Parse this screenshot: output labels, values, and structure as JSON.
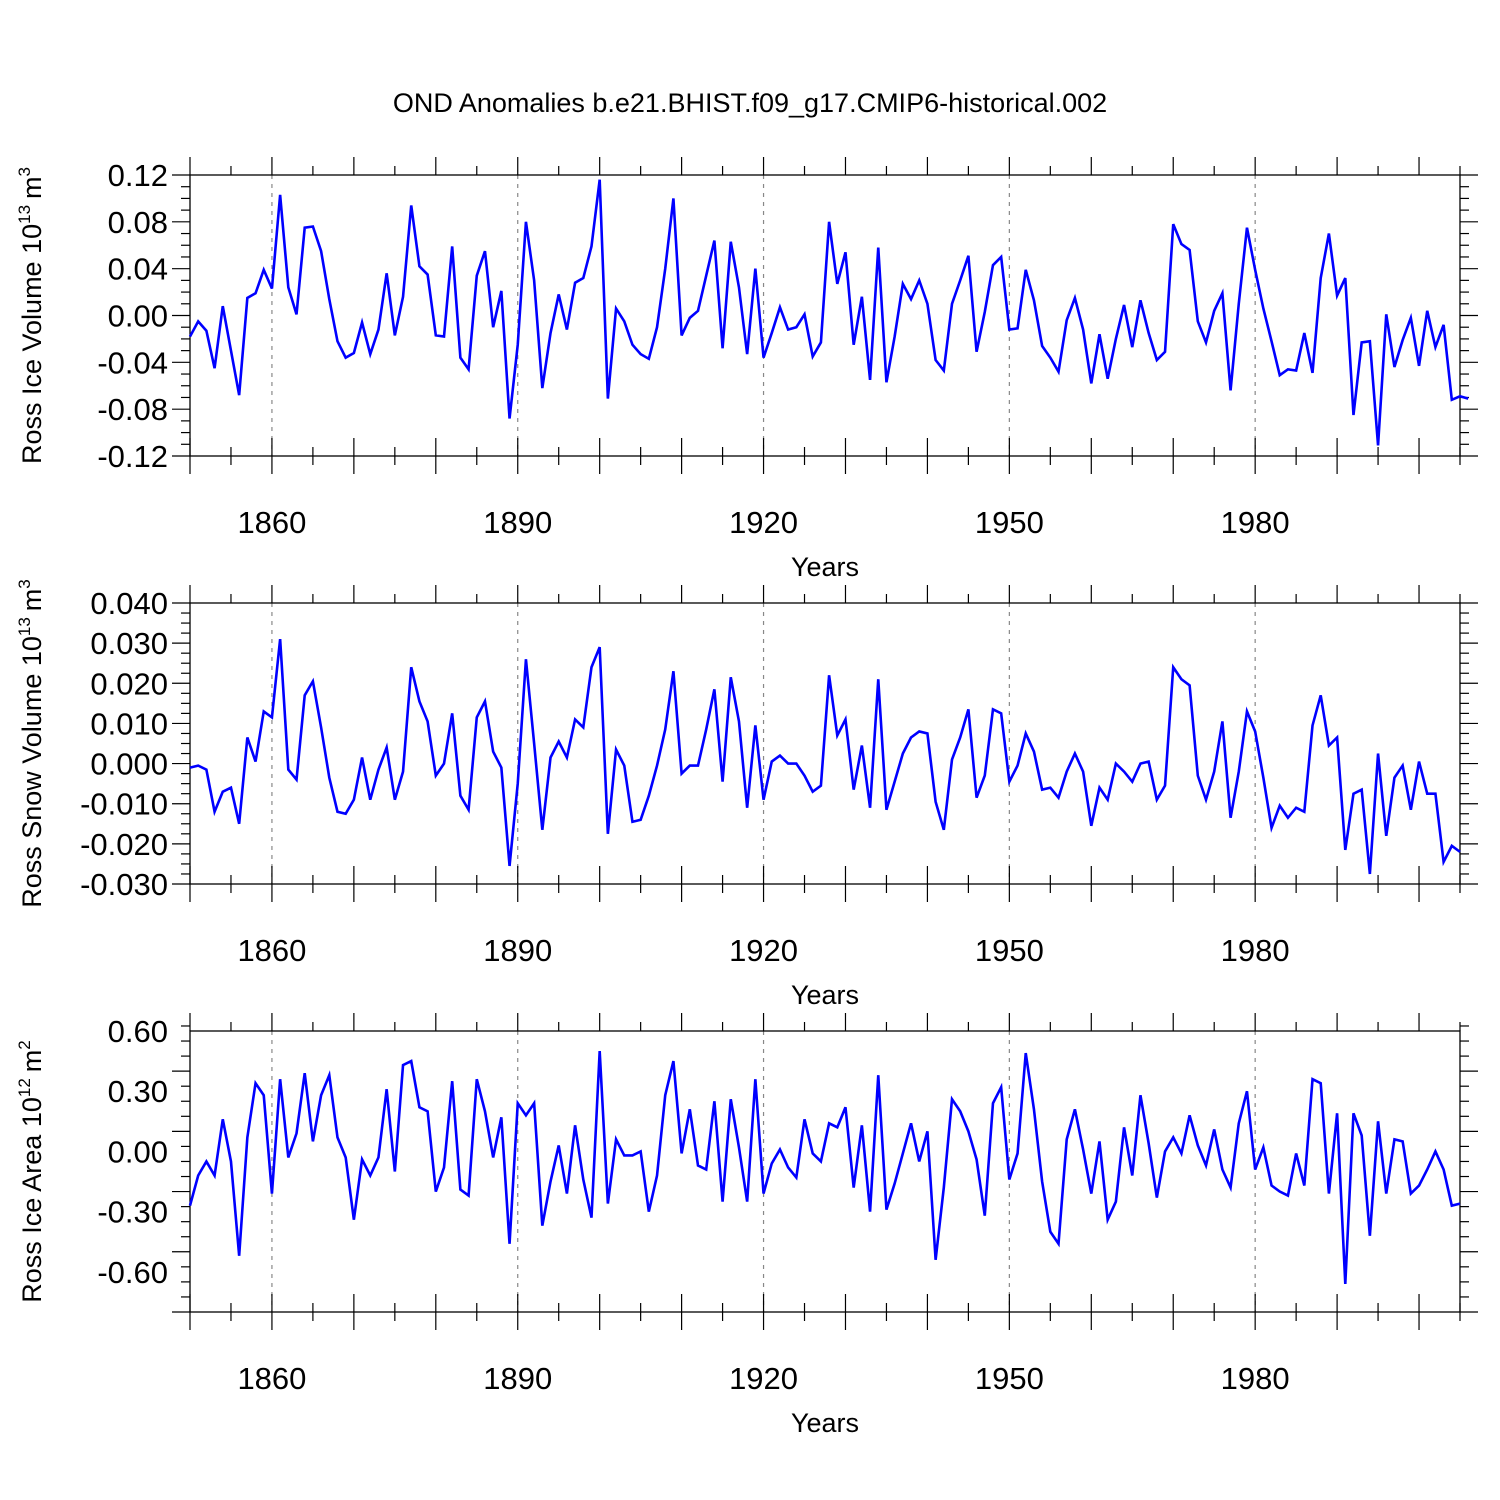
{
  "title": "OND Anomalies b.e21.BHIST.f09_g17.CMIP6-historical.002",
  "chart_data": [
    {
      "type": "line",
      "name": "ross-ice-volume",
      "ylabel": "Ross Ice Volume",
      "ylabel_unit_base": "10",
      "ylabel_unit_exp": "13",
      "ylabel_unit_tail": "m",
      "ylabel_unit_tail_exp": "3",
      "xlabel": "Years",
      "xlim": [
        1850,
        2005
      ],
      "ylim": [
        -0.12,
        0.12
      ],
      "x_ticks": [
        "1860",
        "1890",
        "1920",
        "1950",
        "1980"
      ],
      "y_ticks": [
        "0.12",
        "0.08",
        "0.04",
        "0.00",
        "-0.04",
        "-0.08",
        "-0.12"
      ],
      "grid": "vertical dashed at major x ticks",
      "line_color": "#0000ff",
      "x_start": 1850,
      "values": [
        -0.018,
        -0.005,
        -0.013,
        -0.045,
        0.008,
        -0.03,
        -0.068,
        0.015,
        0.019,
        0.039,
        0.023,
        0.103,
        0.024,
        0.001,
        0.075,
        0.076,
        0.055,
        0.014,
        -0.022,
        -0.036,
        -0.032,
        -0.006,
        -0.033,
        -0.012,
        0.036,
        -0.017,
        0.016,
        0.094,
        0.042,
        0.035,
        -0.017,
        -0.018,
        0.059,
        -0.036,
        -0.046,
        0.034,
        0.055,
        -0.01,
        0.021,
        -0.088,
        -0.025,
        0.08,
        0.03,
        -0.062,
        -0.015,
        0.018,
        -0.012,
        0.028,
        0.032,
        0.059,
        0.116,
        -0.071,
        0.006,
        -0.005,
        -0.025,
        -0.033,
        -0.037,
        -0.01,
        0.04,
        0.1,
        -0.017,
        -0.002,
        0.004,
        0.034,
        0.064,
        -0.028,
        0.063,
        0.024,
        -0.033,
        0.04,
        -0.036,
        -0.015,
        0.007,
        -0.012,
        -0.01,
        0.001,
        -0.035,
        -0.023,
        0.08,
        0.027,
        0.054,
        -0.025,
        0.016,
        -0.055,
        0.058,
        -0.057,
        -0.018,
        0.027,
        0.014,
        0.03,
        0.01,
        -0.038,
        -0.047,
        0.01,
        0.03,
        0.051,
        -0.031,
        0.003,
        0.043,
        0.05,
        -0.012,
        -0.011,
        0.039,
        0.013,
        -0.026,
        -0.036,
        -0.048,
        -0.004,
        0.015,
        -0.012,
        -0.058,
        -0.016,
        -0.054,
        -0.02,
        0.009,
        -0.027,
        0.013,
        -0.015,
        -0.038,
        -0.031,
        0.078,
        0.061,
        0.056,
        -0.005,
        -0.023,
        0.004,
        0.019,
        -0.064,
        0.01,
        0.075,
        0.039,
        0.006,
        -0.022,
        -0.051,
        -0.046,
        -0.047,
        -0.015,
        -0.049,
        0.032,
        0.07,
        0.017,
        0.032,
        -0.085,
        -0.023,
        -0.022,
        -0.111,
        0.001,
        -0.044,
        -0.021,
        -0.002,
        -0.043,
        0.004,
        -0.027,
        -0.008,
        -0.072,
        -0.069,
        -0.071
      ]
    },
    {
      "type": "line",
      "name": "ross-snow-volume",
      "ylabel": "Ross Snow Volume",
      "ylabel_unit_base": "10",
      "ylabel_unit_exp": "13",
      "ylabel_unit_tail": "m",
      "ylabel_unit_tail_exp": "3",
      "xlabel": "Years",
      "xlim": [
        1850,
        2005
      ],
      "ylim": [
        -0.03,
        0.04
      ],
      "x_ticks": [
        "1860",
        "1890",
        "1920",
        "1950",
        "1980"
      ],
      "y_ticks": [
        "0.040",
        "0.030",
        "0.020",
        "0.010",
        "0.000",
        "-0.010",
        "-0.020",
        "-0.030"
      ],
      "grid": "vertical dashed at major x ticks",
      "line_color": "#0000ff",
      "x_start": 1850,
      "values": [
        -0.001,
        -0.0005,
        -0.0015,
        -0.012,
        -0.007,
        -0.006,
        -0.015,
        0.0065,
        0.0005,
        0.013,
        0.0115,
        0.031,
        -0.0015,
        -0.004,
        0.017,
        0.0205,
        0.009,
        -0.0035,
        -0.012,
        -0.0125,
        -0.009,
        0.0015,
        -0.009,
        -0.0015,
        0.004,
        -0.009,
        -0.002,
        0.024,
        0.0155,
        0.0105,
        -0.003,
        0.0,
        0.0125,
        -0.008,
        -0.0115,
        0.0115,
        0.0155,
        0.003,
        -0.001,
        -0.0255,
        -0.005,
        0.026,
        0.005,
        -0.0165,
        0.0015,
        0.0055,
        0.0015,
        0.011,
        0.009,
        0.024,
        0.029,
        -0.0175,
        0.0035,
        -0.0005,
        -0.0145,
        -0.014,
        -0.008,
        -0.0005,
        0.0085,
        0.023,
        -0.0025,
        -0.0005,
        -0.0005,
        0.0085,
        0.0185,
        -0.0045,
        0.0215,
        0.0105,
        -0.011,
        0.0095,
        -0.009,
        0.0005,
        0.002,
        0.0,
        0.0,
        -0.003,
        -0.007,
        -0.0055,
        0.022,
        0.007,
        0.011,
        -0.0065,
        0.0045,
        -0.011,
        0.021,
        -0.0115,
        -0.0045,
        0.0025,
        0.0065,
        0.008,
        0.0075,
        -0.0095,
        -0.0165,
        0.001,
        0.0065,
        0.0135,
        -0.0085,
        -0.003,
        0.0135,
        0.0125,
        -0.0045,
        -0.0005,
        0.0075,
        0.003,
        -0.0065,
        -0.006,
        -0.0085,
        -0.002,
        0.0025,
        -0.002,
        -0.0155,
        -0.006,
        -0.009,
        0.0,
        -0.002,
        -0.0045,
        0.0,
        0.0005,
        -0.009,
        -0.0055,
        0.024,
        0.021,
        0.0195,
        -0.003,
        -0.009,
        -0.002,
        0.0105,
        -0.0135,
        -0.002,
        0.013,
        0.008,
        -0.0035,
        -0.016,
        -0.0105,
        -0.0135,
        -0.011,
        -0.012,
        0.0095,
        0.017,
        0.0045,
        0.0065,
        -0.0215,
        -0.0075,
        -0.0065,
        -0.0275,
        0.0025,
        -0.018,
        -0.0035,
        -0.0005,
        -0.0115,
        0.0005,
        -0.0075,
        -0.0075,
        -0.0245,
        -0.0205,
        -0.022
      ]
    },
    {
      "type": "line",
      "name": "ross-ice-area",
      "ylabel": "Ross Ice Area",
      "ylabel_unit_base": "10",
      "ylabel_unit_exp": "12",
      "ylabel_unit_tail": "m",
      "ylabel_unit_tail_exp": "2",
      "xlabel": "Years",
      "xlim": [
        1850,
        2005
      ],
      "ylim": [
        -0.8,
        0.6
      ],
      "x_ticks": [
        "1860",
        "1890",
        "1920",
        "1950",
        "1980"
      ],
      "y_ticks": [
        "0.60",
        "0.30",
        "0.00",
        "-0.30",
        "-0.60"
      ],
      "grid": "vertical dashed at major x ticks",
      "line_color": "#0000ff",
      "x_start": 1850,
      "values": [
        -0.27,
        -0.12,
        -0.05,
        -0.12,
        0.16,
        -0.05,
        -0.52,
        0.07,
        0.34,
        0.28,
        -0.21,
        0.36,
        -0.03,
        0.09,
        0.39,
        0.05,
        0.28,
        0.38,
        0.07,
        -0.03,
        -0.34,
        -0.04,
        -0.12,
        -0.03,
        0.31,
        -0.1,
        0.43,
        0.45,
        0.22,
        0.2,
        -0.2,
        -0.08,
        0.35,
        -0.19,
        -0.22,
        0.36,
        0.2,
        -0.03,
        0.17,
        -0.46,
        0.24,
        0.18,
        0.24,
        -0.37,
        -0.15,
        0.03,
        -0.21,
        0.13,
        -0.14,
        -0.33,
        0.5,
        -0.26,
        0.06,
        -0.02,
        -0.02,
        0.0,
        -0.3,
        -0.12,
        0.28,
        0.45,
        -0.01,
        0.21,
        -0.07,
        -0.09,
        0.25,
        -0.25,
        0.26,
        0.02,
        -0.25,
        0.36,
        -0.21,
        -0.06,
        0.01,
        -0.08,
        -0.13,
        0.16,
        -0.01,
        -0.05,
        0.14,
        0.12,
        0.22,
        -0.18,
        0.13,
        -0.3,
        0.38,
        -0.29,
        -0.16,
        -0.01,
        0.14,
        -0.05,
        0.1,
        -0.54,
        -0.18,
        0.26,
        0.2,
        0.1,
        -0.04,
        -0.32,
        0.24,
        0.32,
        -0.14,
        -0.01,
        0.49,
        0.21,
        -0.15,
        -0.4,
        -0.46,
        0.06,
        0.21,
        0.01,
        -0.21,
        0.05,
        -0.34,
        -0.25,
        0.12,
        -0.12,
        0.28,
        0.04,
        -0.23,
        0.0,
        0.07,
        -0.01,
        0.18,
        0.03,
        -0.07,
        0.11,
        -0.09,
        -0.18,
        0.14,
        0.3,
        -0.09,
        0.02,
        -0.17,
        -0.2,
        -0.22,
        -0.01,
        -0.17,
        0.36,
        0.34,
        -0.21,
        0.19,
        -0.66,
        0.19,
        0.08,
        -0.42,
        0.15,
        -0.21,
        0.06,
        0.05,
        -0.21,
        -0.17,
        -0.09,
        0.0,
        -0.09,
        -0.27,
        -0.26
      ]
    }
  ]
}
